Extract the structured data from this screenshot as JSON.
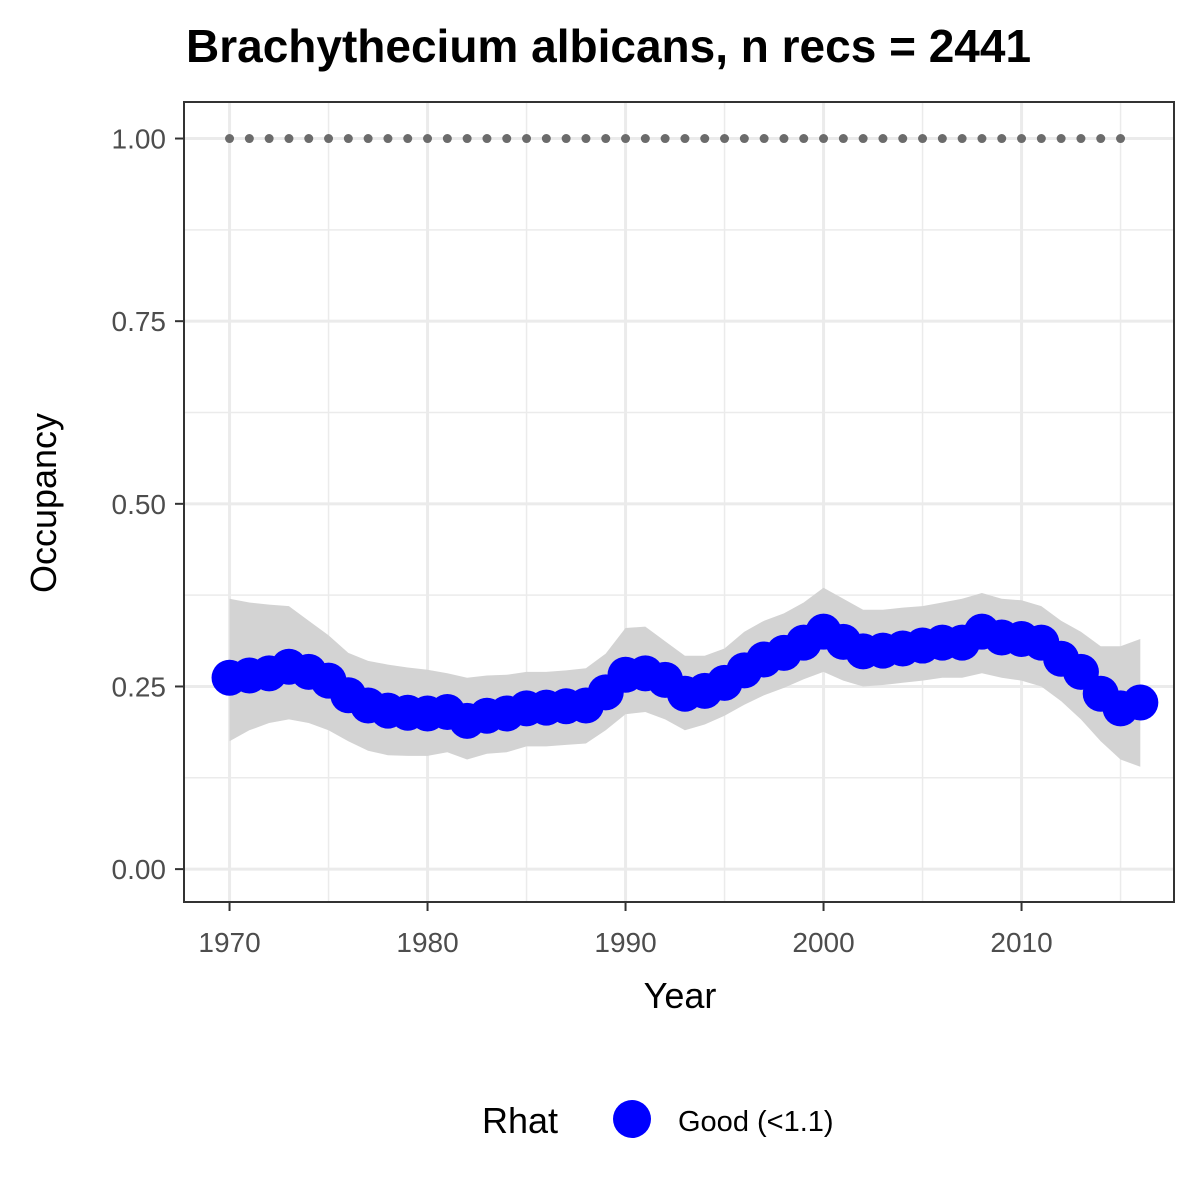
{
  "chart_data": {
    "type": "line",
    "title": "Brachythecium albicans, n recs = 2441",
    "xlabel": "Year",
    "ylabel": "Occupancy",
    "xlim": [
      1967.7,
      2017.7
    ],
    "ylim": [
      -0.045,
      1.05
    ],
    "x_ticks": [
      1970,
      1980,
      1990,
      2000,
      2010
    ],
    "x_tick_labels": [
      "1970",
      "1980",
      "1990",
      "2000",
      "2010"
    ],
    "y_ticks": [
      0,
      0.25,
      0.5,
      0.75,
      1.0
    ],
    "y_tick_labels": [
      "0.00",
      "0.25",
      "0.50",
      "0.75",
      "1.00"
    ],
    "grid": true,
    "legend": {
      "position": "bottom",
      "title": "Rhat",
      "entries": [
        "Good (<1.1)"
      ]
    },
    "colors": {
      "series": "#0000ff",
      "band": "#d3d3d3",
      "reference": "#6b6b6b",
      "grid": "#ebebeb",
      "border": "#333333"
    },
    "x": [
      1970,
      1971,
      1972,
      1973,
      1974,
      1975,
      1976,
      1977,
      1978,
      1979,
      1980,
      1981,
      1982,
      1983,
      1984,
      1985,
      1986,
      1987,
      1988,
      1989,
      1990,
      1991,
      1992,
      1993,
      1994,
      1995,
      1996,
      1997,
      1998,
      1999,
      2000,
      2001,
      2002,
      2003,
      2004,
      2005,
      2006,
      2007,
      2008,
      2009,
      2010,
      2011,
      2012,
      2013,
      2014,
      2015,
      2016
    ],
    "series": [
      {
        "name": "Good (<1.1)",
        "values": [
          0.262,
          0.265,
          0.268,
          0.277,
          0.27,
          0.258,
          0.238,
          0.224,
          0.217,
          0.214,
          0.213,
          0.215,
          0.203,
          0.21,
          0.213,
          0.22,
          0.221,
          0.223,
          0.224,
          0.242,
          0.266,
          0.268,
          0.259,
          0.24,
          0.244,
          0.255,
          0.272,
          0.287,
          0.296,
          0.31,
          0.325,
          0.311,
          0.298,
          0.299,
          0.302,
          0.306,
          0.31,
          0.31,
          0.325,
          0.317,
          0.315,
          0.31,
          0.288,
          0.27,
          0.24,
          0.22,
          0.228
        ],
        "lower": [
          0.175,
          0.19,
          0.2,
          0.205,
          0.2,
          0.19,
          0.175,
          0.162,
          0.156,
          0.155,
          0.155,
          0.16,
          0.15,
          0.158,
          0.16,
          0.168,
          0.168,
          0.17,
          0.172,
          0.19,
          0.212,
          0.215,
          0.205,
          0.19,
          0.198,
          0.21,
          0.225,
          0.238,
          0.248,
          0.26,
          0.27,
          0.258,
          0.25,
          0.252,
          0.255,
          0.258,
          0.262,
          0.262,
          0.268,
          0.262,
          0.258,
          0.25,
          0.23,
          0.205,
          0.175,
          0.15,
          0.14
        ],
        "upper": [
          0.37,
          0.365,
          0.362,
          0.36,
          0.34,
          0.32,
          0.296,
          0.285,
          0.28,
          0.276,
          0.273,
          0.268,
          0.262,
          0.265,
          0.266,
          0.27,
          0.27,
          0.272,
          0.275,
          0.295,
          0.33,
          0.332,
          0.312,
          0.292,
          0.292,
          0.302,
          0.325,
          0.34,
          0.35,
          0.365,
          0.385,
          0.37,
          0.355,
          0.355,
          0.358,
          0.36,
          0.365,
          0.37,
          0.378,
          0.37,
          0.368,
          0.36,
          0.34,
          0.325,
          0.305,
          0.305,
          0.315
        ]
      }
    ],
    "reference_line": {
      "x_start": 1970,
      "x_end": 2015,
      "y": 1.0,
      "step": 1
    }
  }
}
